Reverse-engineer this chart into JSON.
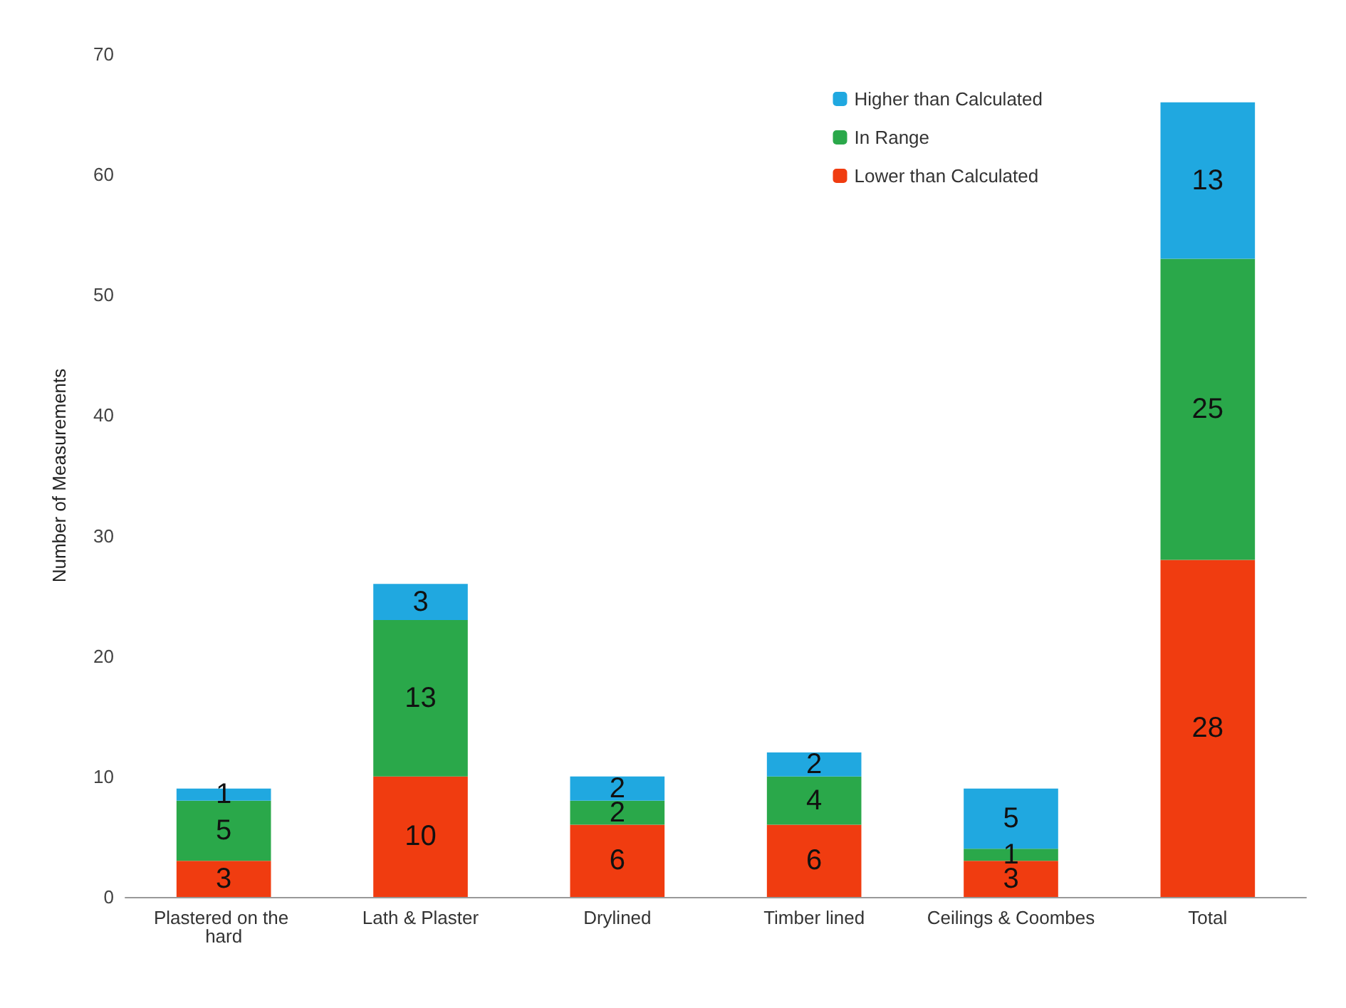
{
  "chart_data": {
    "type": "bar",
    "stacked": true,
    "ylabel": "Number of Measurements",
    "categories": [
      "Plastered on the hard",
      "Lath & Plaster",
      "Drylined",
      "Timber lined",
      "Ceilings & Coombes",
      "Total"
    ],
    "series": [
      {
        "name": "Lower than Calculated",
        "color": "#f03c10",
        "values": [
          3,
          10,
          6,
          6,
          3,
          28
        ]
      },
      {
        "name": "In Range",
        "color": "#2aa84a",
        "values": [
          5,
          13,
          2,
          4,
          1,
          25
        ]
      },
      {
        "name": "Higher than Calculated",
        "color": "#20a8e0",
        "values": [
          1,
          3,
          2,
          2,
          5,
          13
        ]
      }
    ],
    "ylim": [
      0,
      70
    ],
    "yticks": [
      0,
      10,
      20,
      30,
      40,
      50,
      60,
      70
    ],
    "grid": false,
    "legend": "top right",
    "data_labels": true
  }
}
